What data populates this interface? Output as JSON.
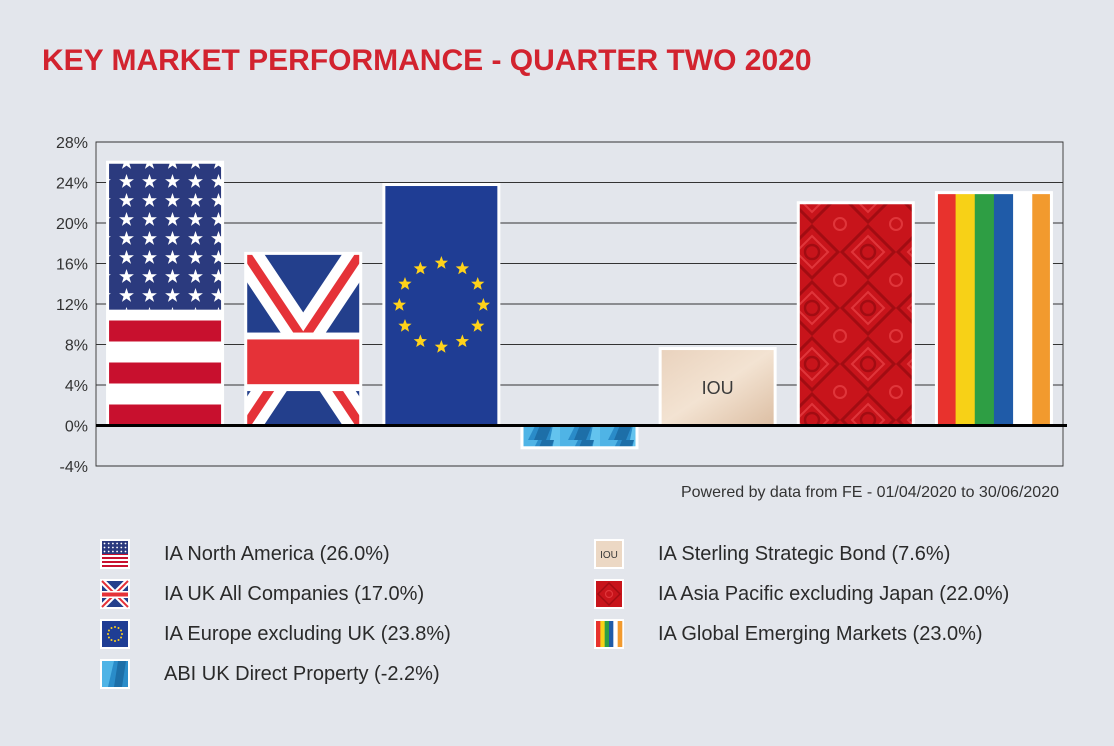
{
  "title": "KEY MARKET PERFORMANCE - QUARTER TWO 2020",
  "source_note": "Powered by data from FE - 01/04/2020 to 30/06/2020",
  "colors": {
    "title": "#d2232f",
    "background": "#e3e6ec",
    "plot_background": "#e3e6ec",
    "grid": "#222222"
  },
  "chart_data": {
    "type": "bar",
    "title": "KEY MARKET PERFORMANCE - QUARTER TWO 2020",
    "xlabel": "",
    "ylabel": "",
    "ylim": [
      -4,
      28
    ],
    "yticks": [
      -4,
      0,
      4,
      8,
      12,
      16,
      20,
      24,
      28
    ],
    "ytick_labels": [
      "-4%",
      "0%",
      "4%",
      "8%",
      "12%",
      "16%",
      "20%",
      "24%",
      "28%"
    ],
    "grid": true,
    "categories": [
      "IA North America",
      "IA UK All Companies",
      "IA Europe excluding UK",
      "ABI UK Direct Property",
      "IA Sterling Strategic Bond",
      "IA Asia Pacific excluding Japan",
      "IA Global Emerging Markets"
    ],
    "values": [
      26.0,
      17.0,
      23.8,
      -2.2,
      7.6,
      22.0,
      23.0
    ],
    "bar_fills": [
      "us-flag",
      "uk-flag",
      "eu-flag",
      "blue-glass",
      "iou-note",
      "red-pattern",
      "rainbow-stripes"
    ],
    "bar_text": [
      "",
      "",
      "",
      "",
      "IOU",
      "",
      ""
    ]
  },
  "legend": [
    {
      "label": "IA North America (26.0%)",
      "icon": "us-flag-icon"
    },
    {
      "label": "IA UK All Companies (17.0%)",
      "icon": "uk-flag-icon"
    },
    {
      "label": "IA Europe excluding UK (23.8%)",
      "icon": "eu-flag-icon"
    },
    {
      "label": "ABI UK Direct Property (-2.2%)",
      "icon": "blue-glass-icon"
    },
    {
      "label": "IA Sterling Strategic Bond (7.6%)",
      "icon": "iou-icon",
      "icon_text": "IOU"
    },
    {
      "label": "IA Asia Pacific excluding Japan (22.0%)",
      "icon": "red-pattern-icon"
    },
    {
      "label": "IA Global Emerging Markets (23.0%)",
      "icon": "rainbow-icon"
    }
  ]
}
